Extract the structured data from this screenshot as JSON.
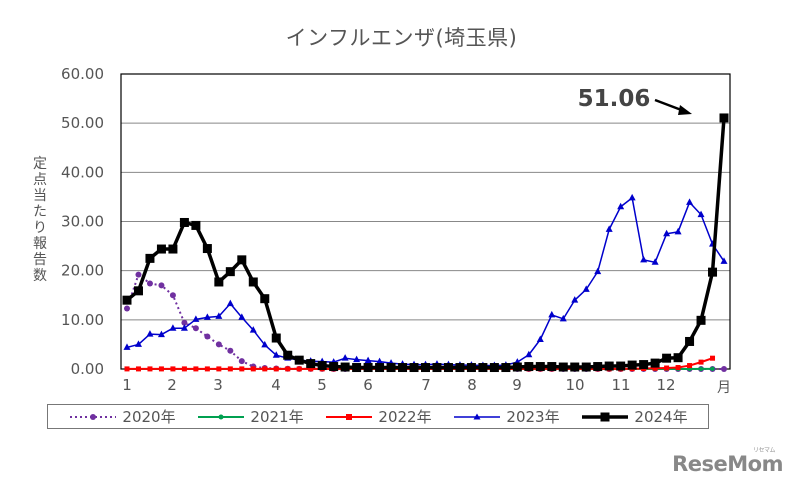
{
  "chart_data": {
    "type": "line",
    "title": "インフルエンザ(埼玉県)",
    "xlabel": "月",
    "ylabel": "定点当たり報告数",
    "ylim": [
      0,
      60
    ],
    "yticks": [
      "0.00",
      "10.00",
      "20.00",
      "30.00",
      "40.00",
      "50.00",
      "60.00"
    ],
    "xticks": [
      "1",
      "2",
      "3",
      "4",
      "5",
      "6",
      "7",
      "8",
      "9",
      "10",
      "11",
      "12"
    ],
    "grid": true,
    "legend_position": "bottom",
    "annotation": {
      "text": "51.06",
      "points_to": "2024年 week 52"
    },
    "x_weeks": 53,
    "series": [
      {
        "name": "2020年",
        "color": "#7030a0",
        "style": "dotted",
        "marker": "circle",
        "values": [
          12.3,
          19.2,
          17.4,
          17.0,
          15.0,
          9.4,
          8.3,
          6.6,
          5.0,
          3.7,
          1.6,
          0.5,
          0.2,
          0.1,
          0.05,
          0.03,
          0.02,
          0.02,
          0.01,
          0.01,
          0.01,
          0.01,
          0.01,
          0.01,
          0.01,
          0.01,
          0.01,
          0.01,
          0.01,
          0.01,
          0.01,
          0.01,
          0.01,
          0.01,
          0.01,
          0.01,
          0.01,
          0.01,
          0.01,
          0.01,
          0.01,
          0.01,
          0.01,
          0.01,
          0.01,
          0.01,
          0.01,
          0.01,
          0.01,
          0.01,
          0.01,
          0.01,
          0.01
        ]
      },
      {
        "name": "2021年",
        "color": "#00a050",
        "style": "solid",
        "marker": "circle",
        "values": [
          0.01,
          0.01,
          0.01,
          0.01,
          0.01,
          0.01,
          0.01,
          0.01,
          0.01,
          0.01,
          0.01,
          0.01,
          0.01,
          0.01,
          0.01,
          0.01,
          0.01,
          0.01,
          0.01,
          0.01,
          0.01,
          0.01,
          0.01,
          0.01,
          0.01,
          0.01,
          0.01,
          0.01,
          0.01,
          0.01,
          0.01,
          0.01,
          0.01,
          0.01,
          0.01,
          0.01,
          0.01,
          0.01,
          0.01,
          0.01,
          0.01,
          0.01,
          0.01,
          0.01,
          0.01,
          0.01,
          0.01,
          0.01,
          0.01,
          0.01,
          0.02,
          0.03
        ]
      },
      {
        "name": "2022年",
        "color": "#ff0000",
        "style": "solid",
        "marker": "square",
        "values": [
          0.02,
          0.02,
          0.02,
          0.02,
          0.02,
          0.02,
          0.02,
          0.02,
          0.02,
          0.02,
          0.02,
          0.02,
          0.02,
          0.02,
          0.02,
          0.02,
          0.02,
          0.02,
          0.02,
          0.02,
          0.02,
          0.02,
          0.02,
          0.02,
          0.02,
          0.02,
          0.02,
          0.02,
          0.02,
          0.02,
          0.02,
          0.02,
          0.02,
          0.02,
          0.02,
          0.02,
          0.02,
          0.02,
          0.02,
          0.02,
          0.02,
          0.02,
          0.02,
          0.02,
          0.05,
          0.1,
          0.15,
          0.2,
          0.3,
          0.7,
          1.4,
          2.2
        ]
      },
      {
        "name": "2023年",
        "color": "#0000cc",
        "style": "solid",
        "marker": "triangle",
        "values": [
          4.4,
          5.0,
          7.1,
          7.0,
          8.3,
          8.3,
          10.1,
          10.5,
          10.7,
          13.3,
          10.5,
          7.9,
          4.9,
          2.8,
          2.2,
          1.8,
          1.6,
          1.5,
          1.4,
          2.2,
          1.9,
          1.7,
          1.5,
          1.2,
          1.0,
          0.9,
          0.9,
          1.0,
          0.9,
          0.8,
          0.8,
          0.7,
          0.7,
          0.8,
          1.4,
          2.9,
          6.0,
          11.0,
          10.2,
          14.0,
          16.2,
          19.8,
          28.4,
          33.0,
          34.8,
          22.2,
          21.7,
          27.5,
          27.9,
          33.9,
          31.4,
          25.4,
          21.9
        ]
      },
      {
        "name": "2024年",
        "color": "#000000",
        "style": "solid",
        "marker": "square",
        "values": [
          14.0,
          15.9,
          22.5,
          24.4,
          24.4,
          29.8,
          29.2,
          24.5,
          17.7,
          19.8,
          22.2,
          17.7,
          14.3,
          6.3,
          2.8,
          1.8,
          1.1,
          0.7,
          0.5,
          0.4,
          0.3,
          0.3,
          0.3,
          0.3,
          0.3,
          0.3,
          0.3,
          0.3,
          0.3,
          0.3,
          0.3,
          0.3,
          0.3,
          0.3,
          0.4,
          0.5,
          0.5,
          0.5,
          0.4,
          0.4,
          0.4,
          0.5,
          0.6,
          0.6,
          0.8,
          0.9,
          1.2,
          2.2,
          2.3,
          5.6,
          9.9,
          19.7,
          51.06
        ]
      }
    ]
  },
  "header": {
    "title": "インフルエンザ(埼玉県)"
  },
  "axis": {
    "ylabel": "定点当たり報告数",
    "xunit": "月"
  },
  "annotation": {
    "label": "51.06"
  },
  "legend": {
    "items": [
      {
        "label": "2020年",
        "color": "#7030a0"
      },
      {
        "label": "2021年",
        "color": "#00a050"
      },
      {
        "label": "2022年",
        "color": "#ff0000"
      },
      {
        "label": "2023年",
        "color": "#0000cc"
      },
      {
        "label": "2024年",
        "color": "#000000"
      }
    ]
  },
  "watermark": {
    "brand": "ReseMom",
    "kana": "リセマム"
  }
}
